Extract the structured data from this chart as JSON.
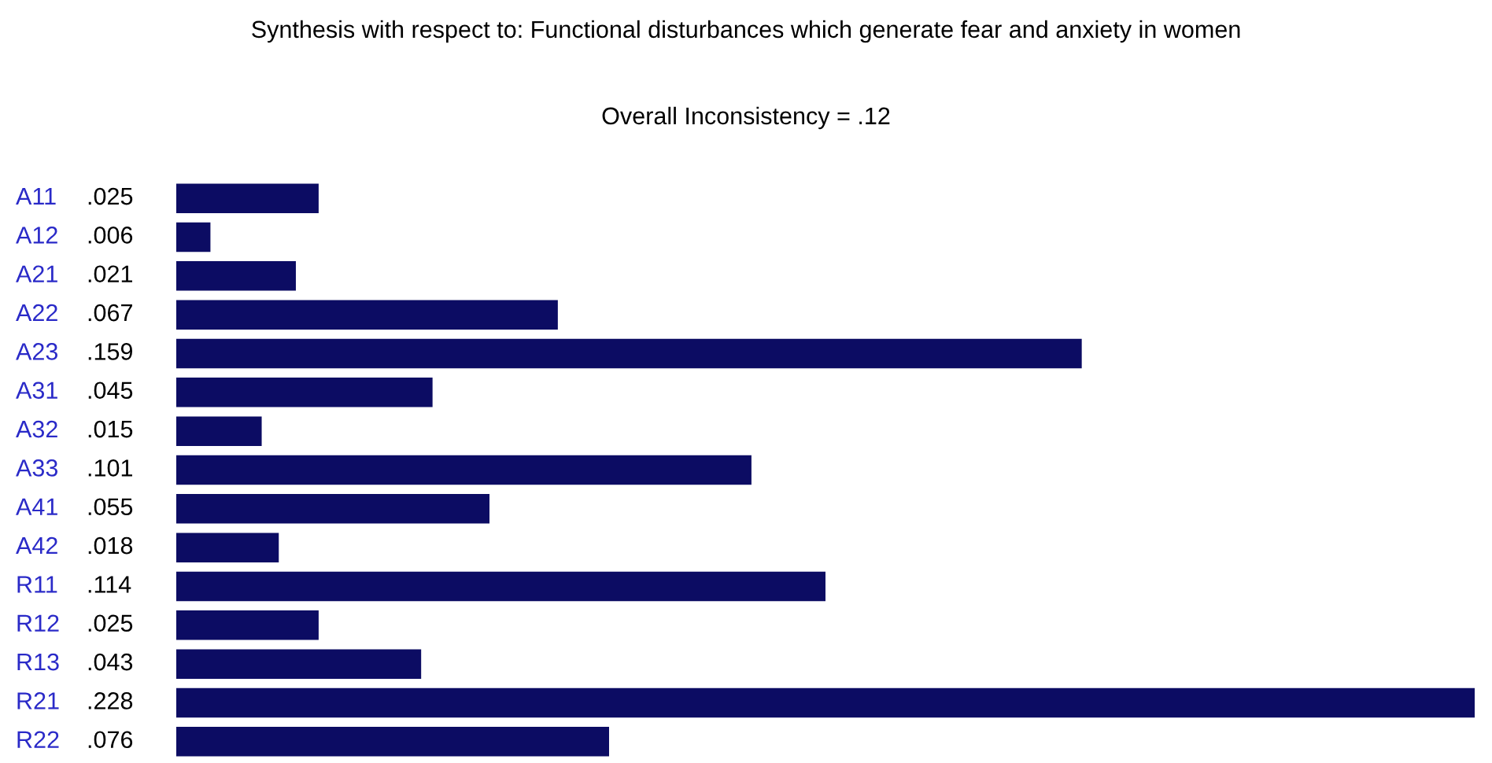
{
  "chart_data": {
    "type": "bar",
    "orientation": "horizontal",
    "title": "Synthesis with respect to: Functional disturbances which generate fear and anxiety in women",
    "subtitle": "Overall Inconsistency = .12",
    "categories": [
      "A11",
      "A12",
      "A21",
      "A22",
      "A23",
      "A31",
      "A32",
      "A33",
      "A41",
      "A42",
      "R11",
      "R12",
      "R13",
      "R21",
      "R22"
    ],
    "values": [
      0.025,
      0.006,
      0.021,
      0.067,
      0.159,
      0.045,
      0.015,
      0.101,
      0.055,
      0.018,
      0.114,
      0.025,
      0.043,
      0.228,
      0.076
    ],
    "value_labels": [
      ".025",
      ".006",
      ".021",
      ".067",
      ".159",
      ".045",
      ".015",
      ".101",
      ".055",
      ".018",
      ".114",
      ".025",
      ".043",
      ".228",
      ".076"
    ],
    "color": "#0c0c63"
  }
}
